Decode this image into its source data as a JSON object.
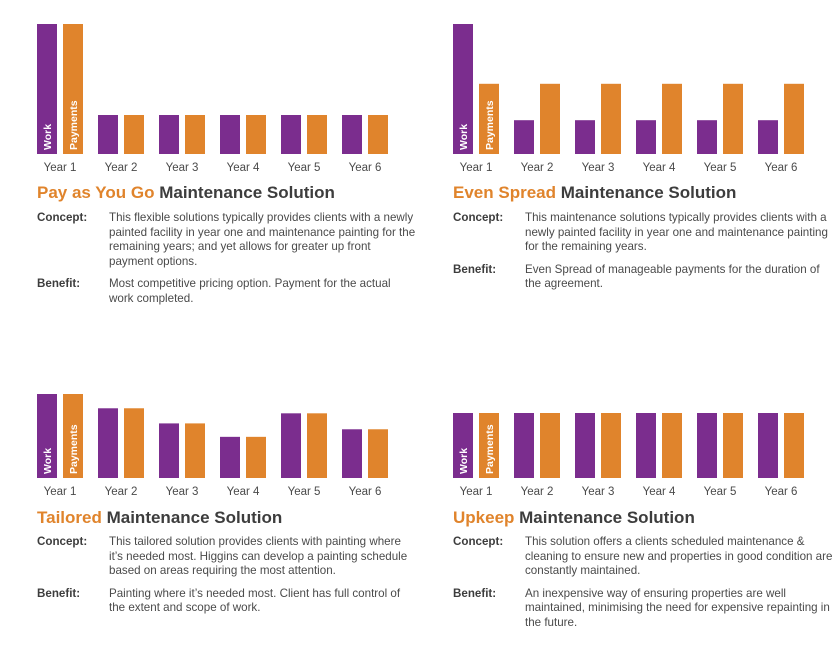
{
  "colors": {
    "work": "#7b2d8e",
    "payments": "#e0842c",
    "label": "#ffffff",
    "tick": "#4a4a4a"
  },
  "labels": {
    "concept": "Concept:",
    "benefit": "Benefit:"
  },
  "chart_data": [
    {
      "type": "bar",
      "title": "Pay as You Go Maintenance Solution",
      "categories": [
        "Year 1",
        "Year 2",
        "Year 3",
        "Year 4",
        "Year 5",
        "Year 6"
      ],
      "series": [
        {
          "name": "Work",
          "values": [
            100,
            30,
            30,
            30,
            30,
            30
          ]
        },
        {
          "name": "Payments",
          "values": [
            100,
            30,
            30,
            30,
            30,
            30
          ]
        }
      ],
      "ylim": [
        0,
        100
      ]
    },
    {
      "type": "bar",
      "title": "Even Spread Maintenance Solution",
      "categories": [
        "Year 1",
        "Year 2",
        "Year 3",
        "Year 4",
        "Year 5",
        "Year 6"
      ],
      "series": [
        {
          "name": "Work",
          "values": [
            100,
            26,
            26,
            26,
            26,
            26
          ]
        },
        {
          "name": "Payments",
          "values": [
            54,
            54,
            54,
            54,
            54,
            54
          ]
        }
      ],
      "ylim": [
        0,
        100
      ]
    },
    {
      "type": "bar",
      "title": "Tailored Maintenance Solution",
      "categories": [
        "Year 1",
        "Year 2",
        "Year 3",
        "Year 4",
        "Year 5",
        "Year 6"
      ],
      "series": [
        {
          "name": "Work",
          "values": [
            100,
            83,
            65,
            49,
            77,
            58
          ]
        },
        {
          "name": "Payments",
          "values": [
            100,
            83,
            65,
            49,
            77,
            58
          ]
        }
      ],
      "ylim": [
        0,
        100
      ]
    },
    {
      "type": "bar",
      "title": "Upkeep Maintenance Solution",
      "categories": [
        "Year 1",
        "Year 2",
        "Year 3",
        "Year 4",
        "Year 5",
        "Year 6"
      ],
      "series": [
        {
          "name": "Work",
          "values": [
            100,
            100,
            100,
            100,
            100,
            100
          ]
        },
        {
          "name": "Payments",
          "values": [
            100,
            100,
            100,
            100,
            100,
            100
          ]
        }
      ],
      "ylim": [
        0,
        100
      ]
    }
  ],
  "panels": [
    {
      "title_accent": "Pay as You Go",
      "title_rest": " Maintenance Solution",
      "concept": "This flexible solutions typically provides clients with a newly painted facility in year one and maintenance painting for the remaining years; and yet allows for greater up front payment options.",
      "benefit": "Most competitive pricing option. Payment for the actual work completed."
    },
    {
      "title_accent": "Even Spread",
      "title_rest": " Maintenance Solution",
      "concept": "This maintenance solutions typically provides clients with a newly painted facility in year one and maintenance painting for the remaining years.",
      "benefit": "Even Spread of manageable payments for the duration of the agreement."
    },
    {
      "title_accent": "Tailored",
      "title_rest": " Maintenance Solution",
      "concept": "This tailored solution provides clients with painting where it’s needed most. Higgins can develop a painting schedule based on areas requiring the most attention.",
      "benefit": "Painting where it’s needed most. Client has full control of the extent and scope of work."
    },
    {
      "title_accent": "Upkeep",
      "title_rest": " Maintenance Solution",
      "concept": "This solution offers a clients scheduled maintenance & cleaning to ensure new and properties in good condition are constantly maintained.",
      "benefit": "An inexpensive way of ensuring properties are well maintained, minimising the need for expensive repainting in the future."
    }
  ]
}
